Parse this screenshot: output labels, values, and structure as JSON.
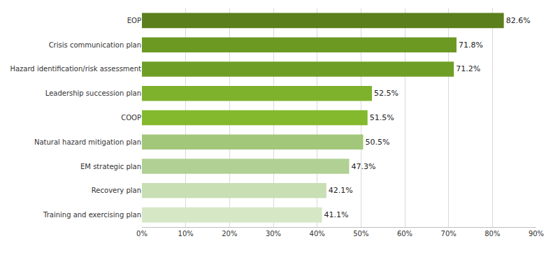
{
  "chart_data": {
    "type": "bar",
    "orientation": "horizontal",
    "categories": [
      "EOP",
      "Crisis communication plan",
      "Hazard identification/risk assessment",
      "Leadership succession plan",
      "COOP",
      "Natural hazard mitigation plan",
      "EM strategic plan",
      "Recovery plan",
      "Training and exercising plan"
    ],
    "values": [
      82.6,
      71.8,
      71.2,
      52.5,
      51.5,
      50.5,
      47.3,
      42.1,
      41.1
    ],
    "value_labels": [
      "82.6%",
      "71.8%",
      "71.2%",
      "52.5%",
      "51.5%",
      "50.5%",
      "47.3%",
      "42.1%",
      "41.1%"
    ],
    "colors": [
      "#5b7f1c",
      "#6b9922",
      "#6f9e26",
      "#7fb22c",
      "#84b92e",
      "#a2c77a",
      "#b0d094",
      "#c8dfb3",
      "#d6e7c6"
    ],
    "xlim": [
      0,
      90
    ],
    "xticks": [
      {
        "value": 0,
        "label": "0%"
      },
      {
        "value": 10,
        "label": "10%"
      },
      {
        "value": 20,
        "label": "20%"
      },
      {
        "value": 30,
        "label": "30%"
      },
      {
        "value": 40,
        "label": "40%"
      },
      {
        "value": 50,
        "label": "50%"
      },
      {
        "value": 60,
        "label": "60%"
      },
      {
        "value": 70,
        "label": "70%"
      },
      {
        "value": 80,
        "label": "80%"
      },
      {
        "value": 90,
        "label": "90%"
      }
    ],
    "grid": true,
    "data_labels": true
  }
}
